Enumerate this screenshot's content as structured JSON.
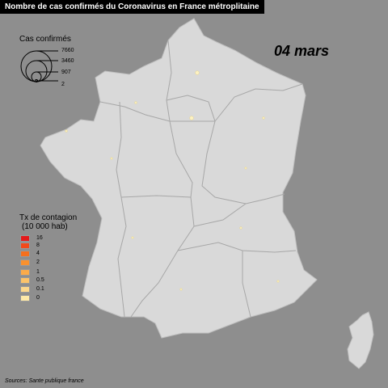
{
  "title": "Nombre de cas confirmés du Coronavirus en France métroplitaine",
  "date": "04 mars",
  "size_legend": {
    "title": "Cas confirmés",
    "values": [
      "7660",
      "3460",
      "907",
      "2"
    ]
  },
  "rate_legend": {
    "title_line1": "Tx de contagion",
    "title_line2": "(10 000 hab)",
    "items": [
      {
        "label": "16",
        "color": "#e41a1c"
      },
      {
        "label": "8",
        "color": "#f24a1a"
      },
      {
        "label": "4",
        "color": "#f6701e"
      },
      {
        "label": "2",
        "color": "#f8912f"
      },
      {
        "label": "1",
        "color": "#fbab4a"
      },
      {
        "label": "0.5",
        "color": "#fcc36a"
      },
      {
        "label": "0.1",
        "color": "#fdd88c"
      },
      {
        "label": "0",
        "color": "#fee9a8"
      }
    ]
  },
  "source": "Sources: Sante publique france",
  "colors": {
    "background": "#8e8e8e",
    "land": "#d9d9d9",
    "region_border": "#a7a7a7",
    "title_bar": "#000000"
  },
  "map_style": "choropleth-proportional-symbols"
}
